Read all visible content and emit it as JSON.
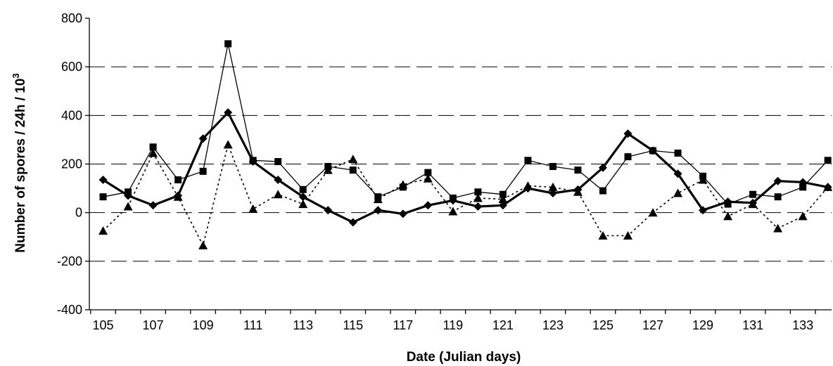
{
  "chart_data": {
    "type": "line",
    "xlabel": "Date (Julian days)",
    "ylabel": "Number of spores / 24h / 10",
    "ylabel_superscript": "3",
    "xlim": [
      105,
      134
    ],
    "ylim": [
      -400,
      800
    ],
    "x_ticks": [
      105,
      107,
      109,
      111,
      113,
      115,
      117,
      119,
      121,
      123,
      125,
      127,
      129,
      131,
      133
    ],
    "y_ticks": [
      -400,
      -200,
      0,
      200,
      400,
      600,
      800
    ],
    "grid": "horizontal dashed",
    "legend": "none",
    "series": [
      {
        "style": "thick-solid",
        "marker": "diamond",
        "x": [
          105,
          106,
          107,
          108,
          109,
          110,
          111,
          112,
          113,
          114,
          115,
          116,
          117,
          118,
          119,
          120,
          121,
          122,
          123,
          124,
          125,
          126,
          127,
          128,
          129,
          130,
          131,
          132,
          133,
          134
        ],
        "values": [
          135,
          70,
          30,
          70,
          305,
          412,
          210,
          135,
          65,
          10,
          -40,
          10,
          -5,
          30,
          50,
          25,
          30,
          100,
          80,
          95,
          185,
          325,
          255,
          160,
          10,
          45,
          40,
          130,
          125,
          105
        ]
      },
      {
        "style": "thin-solid",
        "marker": "square",
        "x": [
          105,
          106,
          107,
          108,
          109,
          110,
          111,
          112,
          113,
          114,
          115,
          116,
          117,
          118,
          119,
          120,
          121,
          122,
          123,
          124,
          125,
          126,
          127,
          128,
          129,
          130,
          131,
          132,
          133,
          134
        ],
        "values": [
          65,
          85,
          270,
          135,
          170,
          695,
          215,
          210,
          95,
          190,
          175,
          65,
          105,
          165,
          60,
          85,
          75,
          215,
          190,
          175,
          90,
          230,
          255,
          245,
          150,
          35,
          75,
          65,
          105,
          215
        ]
      },
      {
        "style": "dotted",
        "marker": "triangle",
        "x": [
          105,
          106,
          107,
          108,
          109,
          110,
          111,
          112,
          113,
          114,
          115,
          116,
          117,
          118,
          119,
          120,
          121,
          122,
          123,
          124,
          125,
          126,
          127,
          128,
          129,
          130,
          131,
          132,
          133,
          134
        ],
        "values": [
          -75,
          25,
          245,
          65,
          -135,
          280,
          15,
          75,
          35,
          175,
          220,
          55,
          115,
          140,
          5,
          60,
          55,
          110,
          105,
          85,
          -95,
          -95,
          0,
          80,
          135,
          -15,
          35,
          -65,
          -15,
          105
        ]
      }
    ]
  }
}
